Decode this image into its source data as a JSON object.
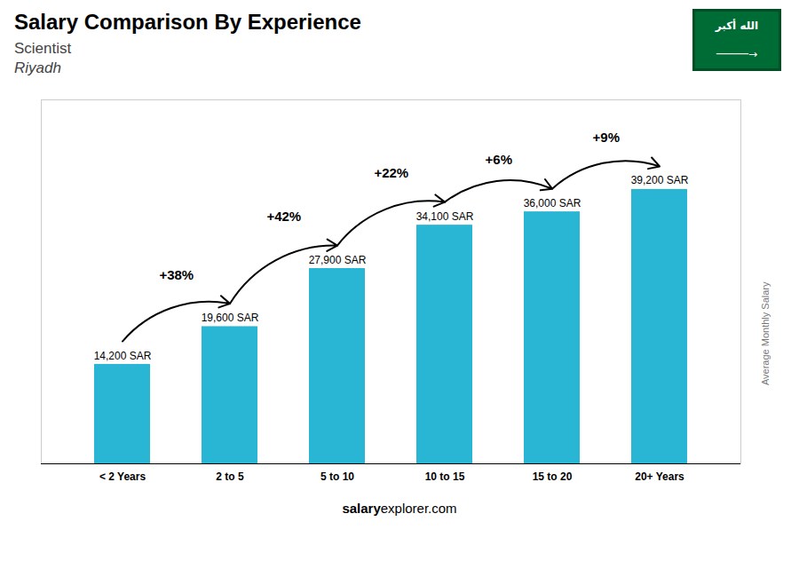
{
  "chart_data": {
    "type": "bar",
    "title": "Salary Comparison By Experience",
    "subtitle": [
      "Scientist",
      "Riyadh"
    ],
    "ylabel": "Average Monthly Salary",
    "caption": [
      "salary",
      "explorer.com"
    ],
    "categories": [
      "< 2 Years",
      "2 to 5",
      "5 to 10",
      "10 to 15",
      "15 to 20",
      "20+ Years"
    ],
    "values": [
      14200,
      19600,
      27900,
      34100,
      36000,
      39200
    ],
    "value_labels": [
      "14,200 SAR",
      "19,600 SAR",
      "27,900 SAR",
      "34,100 SAR",
      "36,000 SAR",
      "39,200 SAR"
    ],
    "data_labels": true,
    "color": "#29b6d4",
    "ylim": [
      0,
      52000
    ],
    "yticks": [],
    "tick_labels": "x",
    "grid": false,
    "annotations": [
      {
        "text": "+38%",
        "from": "< 2 Years",
        "to": "2 to 5"
      },
      {
        "text": "+42%",
        "from": "2 to 5",
        "to": "5 to 10"
      },
      {
        "text": "+22%",
        "from": "5 to 10",
        "to": "10 to 15"
      },
      {
        "text": "+6%",
        "from": "10 to 15",
        "to": "15 to 20"
      },
      {
        "text": "+9%",
        "from": "15 to 20",
        "to": "20+ Years"
      },
      {
        "text": "الله أكبر",
        "color": "#006c35"
      },
      {
        "text": "─────→",
        "color": "#006c35"
      }
    ]
  }
}
